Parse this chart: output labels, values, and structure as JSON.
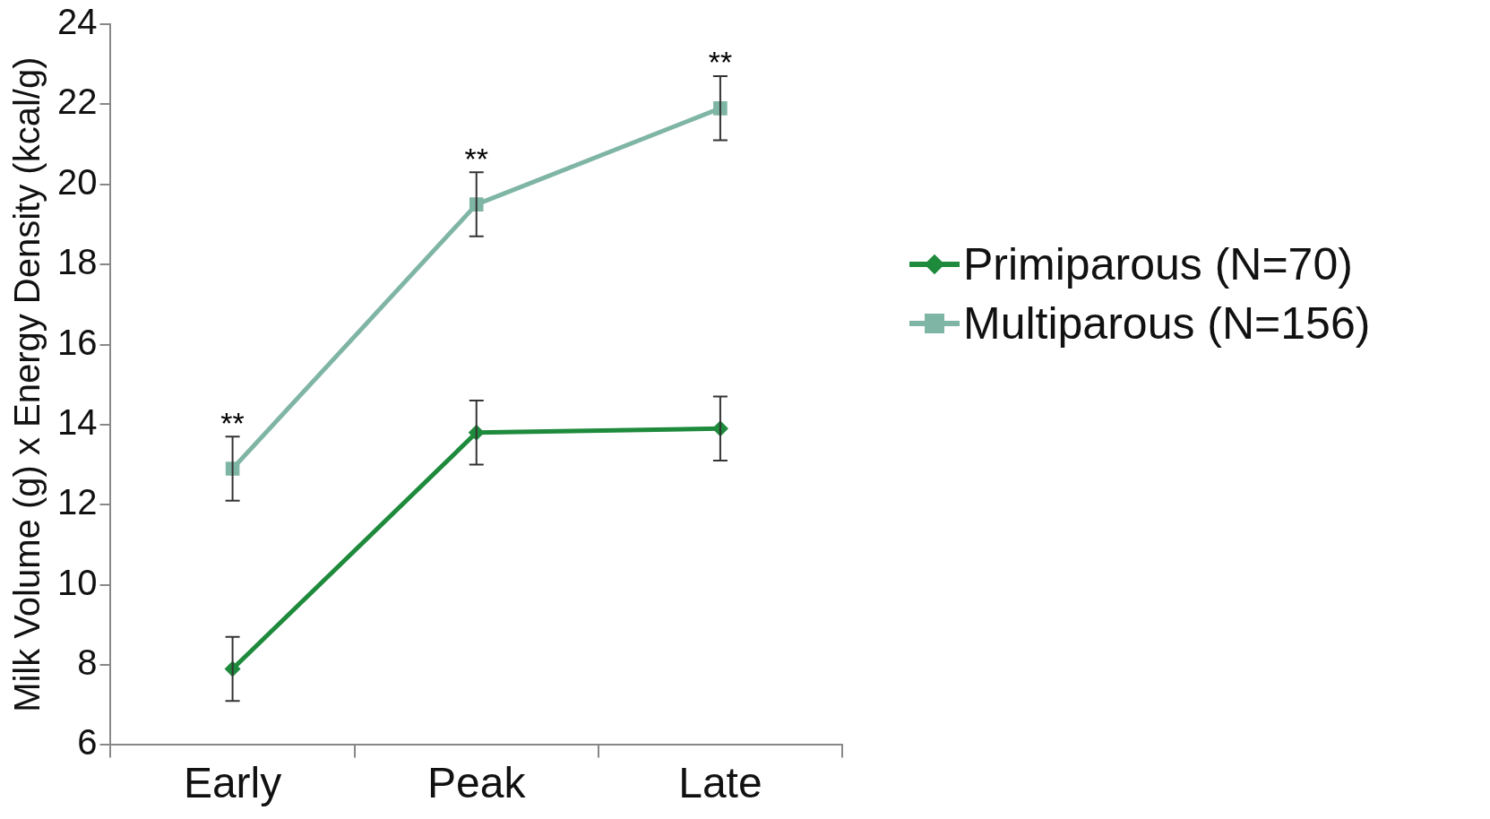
{
  "chart_data": {
    "type": "line",
    "ylabel": "Milk Volume (g) x Energy Density (kcal/g)",
    "categories": [
      "Early",
      "Peak",
      "Late"
    ],
    "series": [
      {
        "name": "Primiparous (N=70)",
        "color": "#1e8a3c",
        "marker": "diamond",
        "values": [
          7.9,
          13.8,
          13.9
        ],
        "errors": [
          0.8,
          0.8,
          0.8
        ]
      },
      {
        "name": "Multiparous (N=156)",
        "color": "#7fb5a5",
        "marker": "square",
        "values": [
          12.9,
          19.5,
          21.9
        ],
        "errors": [
          0.8,
          0.8,
          0.8
        ]
      }
    ],
    "ylim": [
      6,
      24
    ],
    "yticks": [
      6,
      8,
      10,
      12,
      14,
      16,
      18,
      20,
      22,
      24
    ],
    "grid": false,
    "legend": "right",
    "annotations": [
      "**",
      "**",
      "**"
    ]
  }
}
